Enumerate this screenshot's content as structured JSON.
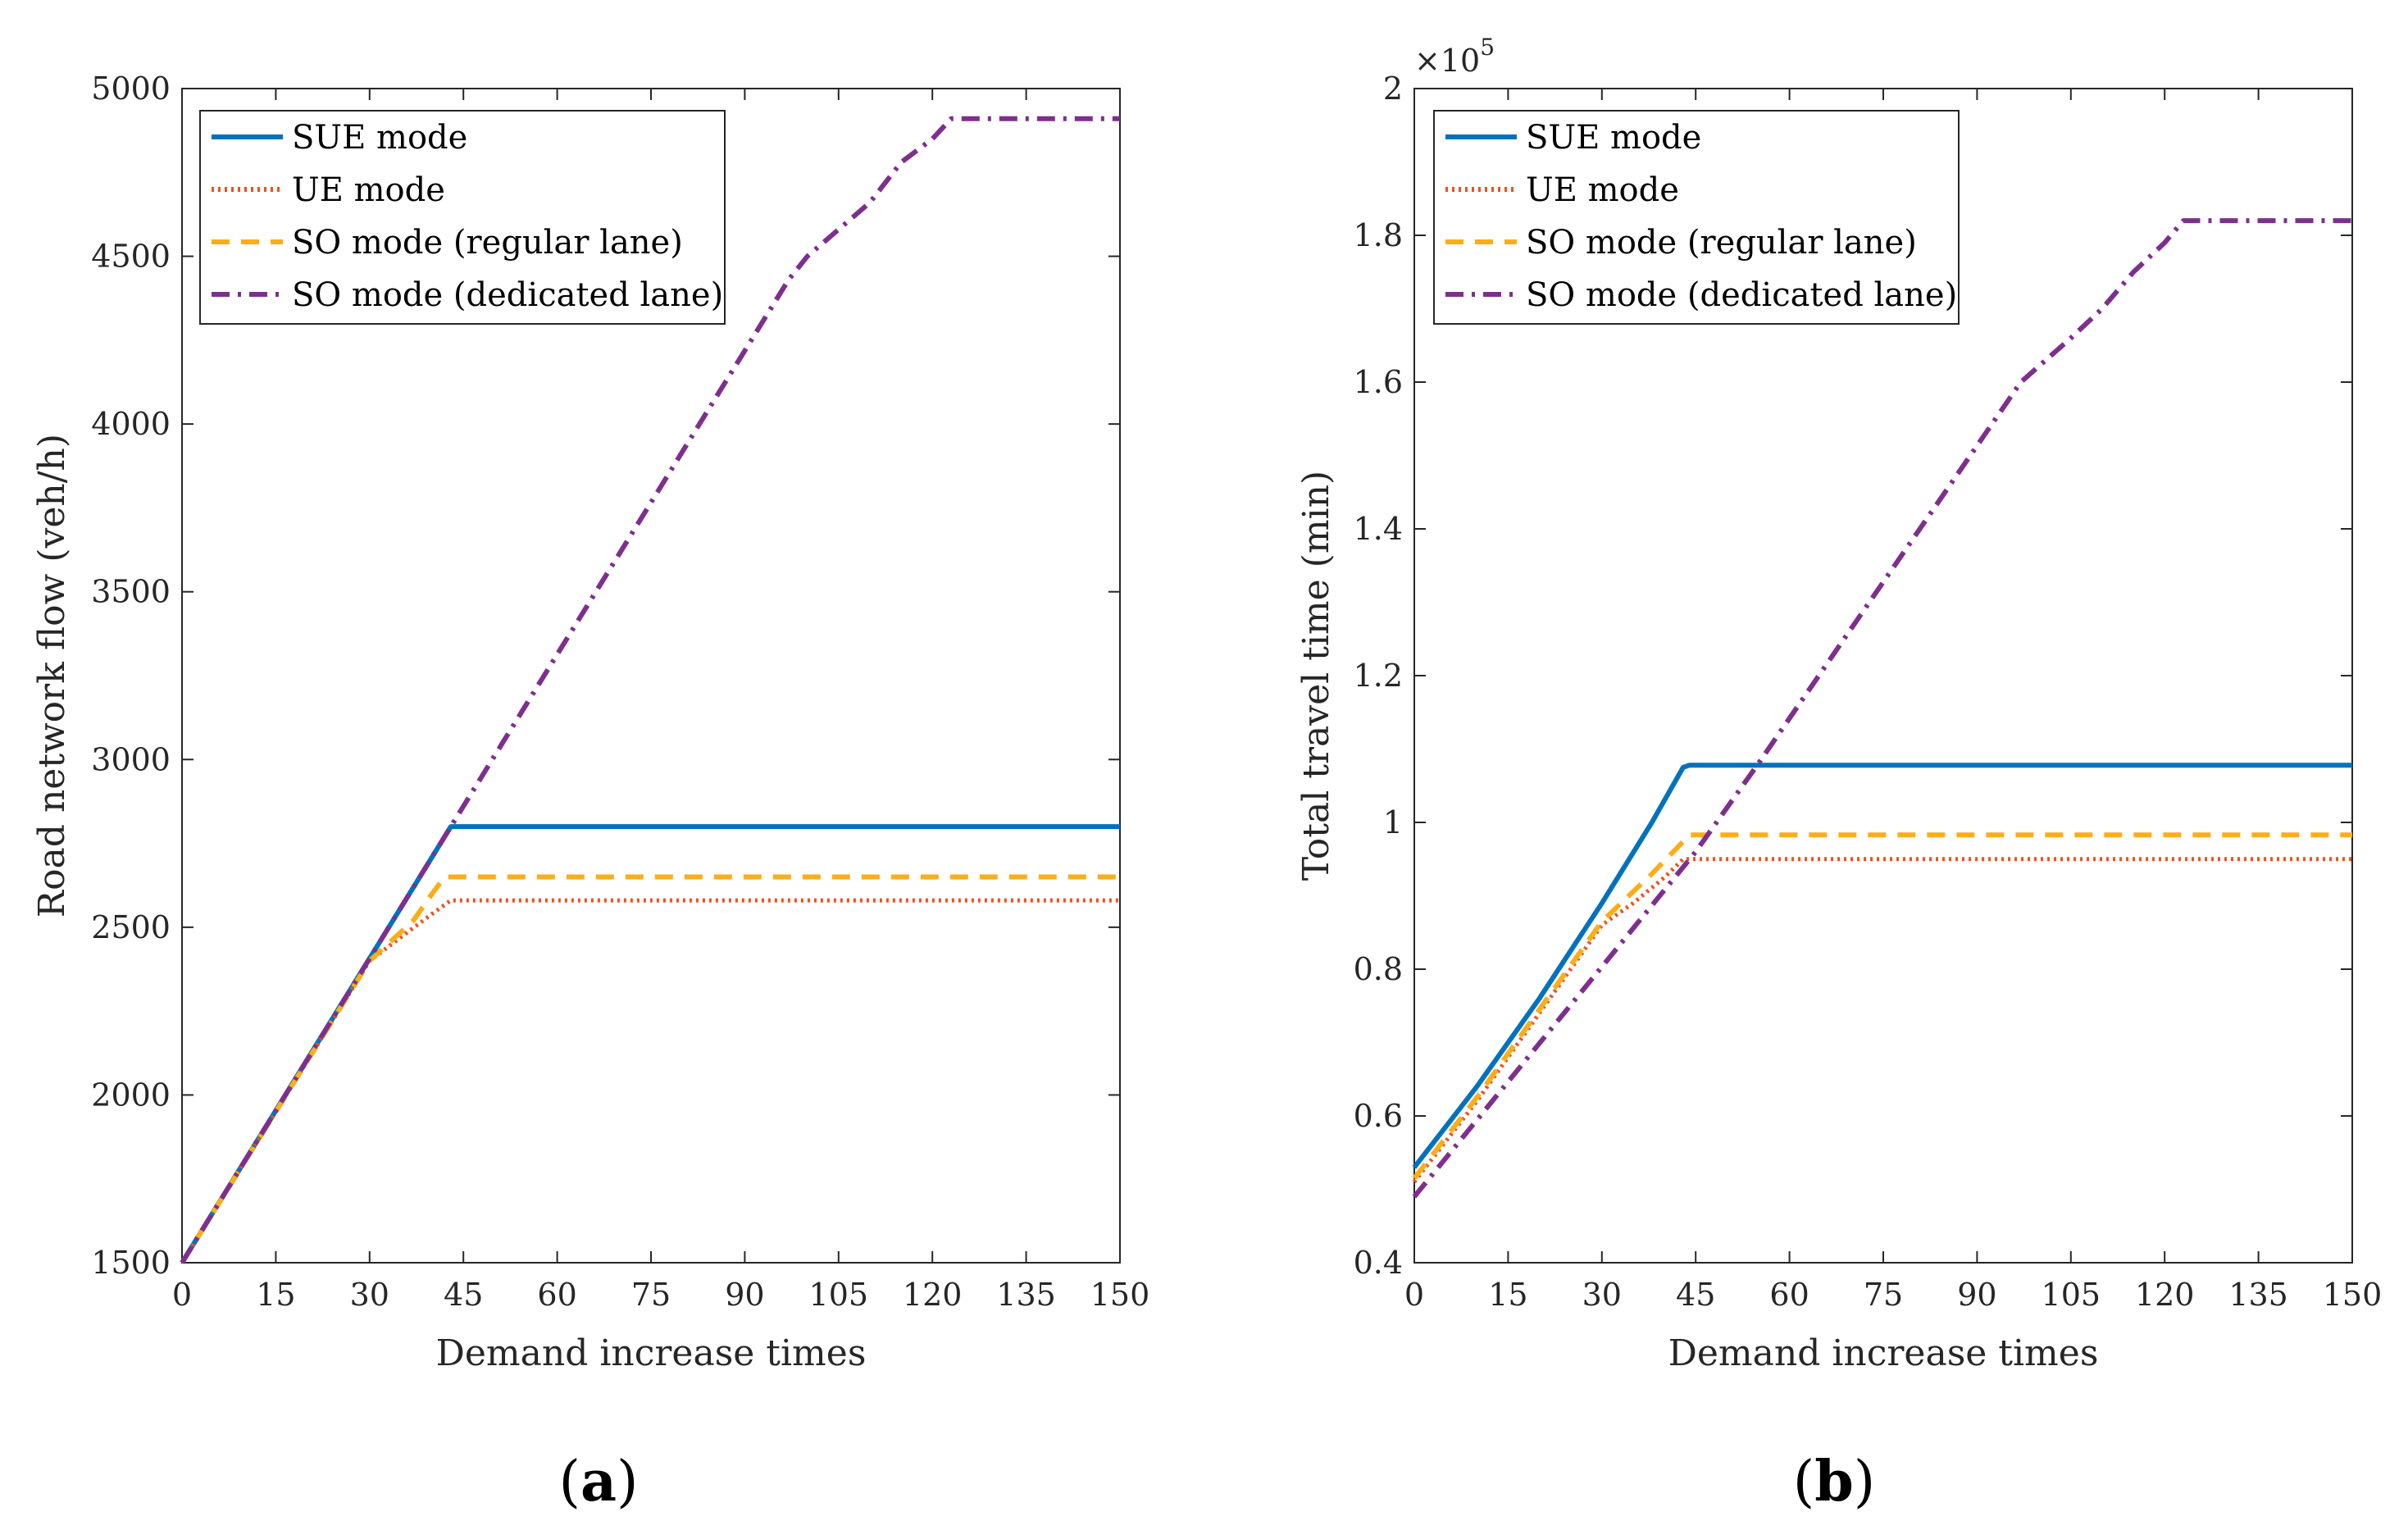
{
  "chart_data": [
    {
      "type": "line",
      "panel_label": "a",
      "xlabel": "Demand increase times",
      "ylabel": "Road network flow (veh/h)",
      "xlim": [
        0,
        150
      ],
      "ylim": [
        1500,
        5000
      ],
      "xticks": [
        0,
        15,
        30,
        45,
        60,
        75,
        90,
        105,
        120,
        135,
        150
      ],
      "yticks": [
        1500,
        2000,
        2500,
        3000,
        3500,
        4000,
        4500,
        5000
      ],
      "ytick_labels": [
        "1500",
        "2000",
        "2500",
        "3000",
        "3500",
        "4000",
        "4500",
        "5000"
      ],
      "exponent_label": "",
      "legend_position": "top-left",
      "series": [
        {
          "name": "SUE mode",
          "x": [
            0,
            43,
            150
          ],
          "values": [
            1500,
            2800,
            2800
          ]
        },
        {
          "name": "UE mode",
          "x": [
            0,
            30,
            35,
            40,
            43,
            150
          ],
          "values": [
            1500,
            2400,
            2470,
            2540,
            2580,
            2580
          ]
        },
        {
          "name": "SO mode (regular lane)",
          "x": [
            0,
            30,
            37,
            40,
            42,
            150
          ],
          "values": [
            1500,
            2400,
            2520,
            2600,
            2650,
            2650
          ]
        },
        {
          "name": "SO mode (dedicated lane)",
          "x": [
            0,
            43,
            97,
            100,
            110,
            115,
            120,
            123,
            150
          ],
          "values": [
            1500,
            2800,
            4430,
            4500,
            4660,
            4780,
            4850,
            4910,
            4910
          ]
        }
      ]
    },
    {
      "type": "line",
      "panel_label": "b",
      "xlabel": "Demand increase times",
      "ylabel": "Total travel time (min)",
      "xlim": [
        0,
        150
      ],
      "ylim": [
        0.4,
        2.0
      ],
      "xticks": [
        0,
        15,
        30,
        45,
        60,
        75,
        90,
        105,
        120,
        135,
        150
      ],
      "yticks": [
        0.4,
        0.6,
        0.8,
        1.0,
        1.2,
        1.4,
        1.6,
        1.8,
        2.0
      ],
      "ytick_labels": [
        "0.4",
        "0.6",
        "0.8",
        "1",
        "1.2",
        "1.4",
        "1.6",
        "1.8",
        "2"
      ],
      "exponent_label": "×10",
      "exponent_power": "5",
      "legend_position": "top-left",
      "series": [
        {
          "name": "SUE mode",
          "x": [
            0,
            10,
            20,
            30,
            38,
            43,
            44,
            150
          ],
          "values": [
            0.53,
            0.64,
            0.76,
            0.89,
            1.0,
            1.075,
            1.078,
            1.078
          ]
        },
        {
          "name": "UE mode",
          "x": [
            0,
            10,
            20,
            30,
            35,
            40,
            43,
            150
          ],
          "values": [
            0.51,
            0.62,
            0.74,
            0.86,
            0.89,
            0.925,
            0.95,
            0.95
          ]
        },
        {
          "name": "SO mode (regular lane)",
          "x": [
            0,
            10,
            20,
            30,
            38,
            42,
            44,
            150
          ],
          "values": [
            0.515,
            0.625,
            0.745,
            0.865,
            0.93,
            0.965,
            0.983,
            0.983
          ]
        },
        {
          "name": "SO mode (dedicated lane)",
          "x": [
            0,
            45,
            55,
            97,
            105,
            110,
            115,
            120,
            123,
            150
          ],
          "values": [
            0.49,
            0.96,
            1.08,
            1.6,
            1.66,
            1.7,
            1.75,
            1.79,
            1.82,
            1.82
          ]
        }
      ]
    }
  ],
  "styles": [
    {
      "name": "SUE mode",
      "color": "#0072BD",
      "dash": "solid"
    },
    {
      "name": "UE mode",
      "color": "#F24F1C",
      "dash": "dotted"
    },
    {
      "name": "SO mode (regular lane)",
      "color": "#FBAE17",
      "dash": "dashed"
    },
    {
      "name": "SO mode (dedicated lane)",
      "color": "#7E2F8E",
      "dash": "dashdot"
    }
  ]
}
